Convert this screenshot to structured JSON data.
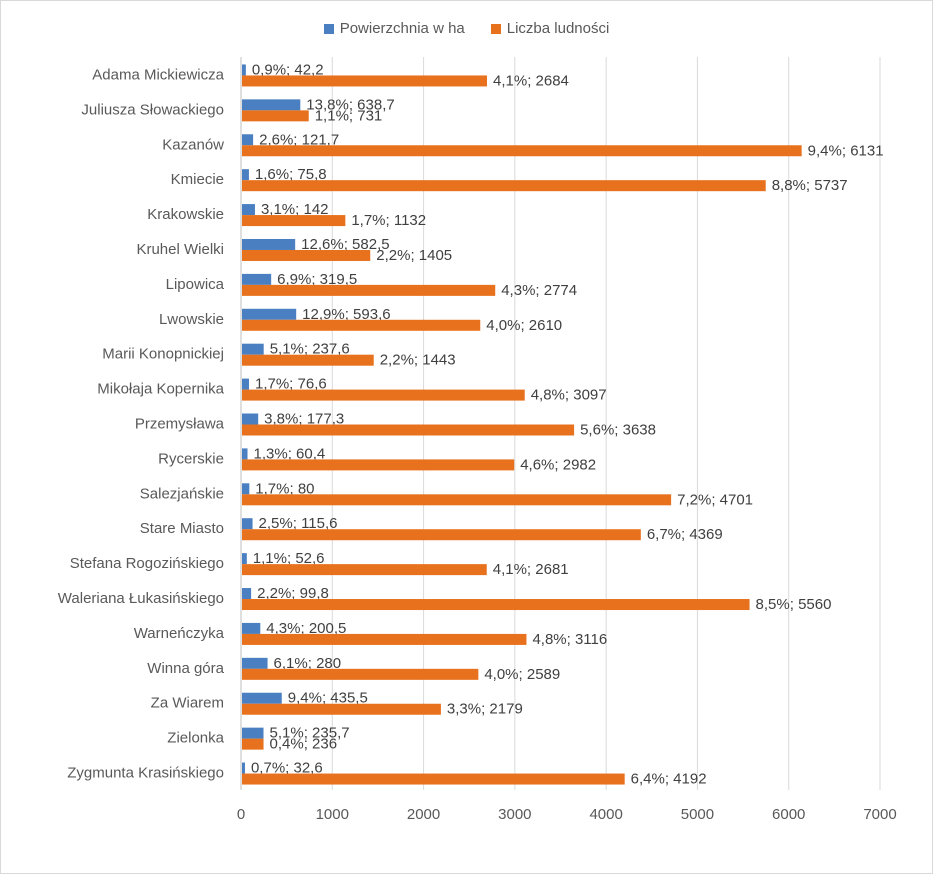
{
  "chart_data": {
    "type": "bar",
    "orientation": "horizontal",
    "title": "",
    "xlabel": "",
    "ylabel": "",
    "xlim": [
      0,
      7000
    ],
    "x_ticks": [
      "0",
      "1000",
      "2000",
      "3000",
      "4000",
      "5000",
      "6000",
      "7000"
    ],
    "grid": true,
    "legend_position": "top",
    "categories": [
      "Adama Mickiewicza",
      "Juliusza Słowackiego",
      "Kazanów",
      "Kmiecie",
      "Krakowskie",
      "Kruhel Wielki",
      "Lipowica",
      "Lwowskie",
      "Marii Konopnickiej",
      "Mikołaja Kopernika",
      "Przemysława",
      "Rycerskie",
      "Salezjańskie",
      "Stare Miasto",
      "Stefana Rogozińskiego",
      "Waleriana Łukasińskiego",
      "Warneńczyka",
      "Winna góra",
      "Za Wiarem",
      "Zielonka",
      "Zygmunta Krasińskiego"
    ],
    "series": [
      {
        "name": "Powierzchnia w ha",
        "color": "#4a7fc1",
        "values": [
          42.2,
          638.7,
          121.7,
          75.8,
          142,
          582.5,
          319.5,
          593.6,
          237.6,
          76.6,
          177.3,
          60.4,
          80,
          115.6,
          52.6,
          99.8,
          200.5,
          280,
          435.5,
          235.7,
          32.6
        ],
        "labels": [
          "0,9%; 42,2",
          "13,8%; 638,7",
          "2,6%; 121,7",
          "1,6%; 75,8",
          "3,1%; 142",
          "12,6%; 582,5",
          "6,9%; 319,5",
          "12,9%; 593,6",
          "5,1%; 237,6",
          "1,7%; 76,6",
          "3,8%; 177,3",
          "1,3%; 60,4",
          "1,7%; 80",
          "2,5%; 115,6",
          "1,1%; 52,6",
          "2,2%; 99,8",
          "4,3%; 200,5",
          "6,1%; 280",
          "9,4%; 435,5",
          "5,1%; 235,7",
          "0,7%; 32,6"
        ]
      },
      {
        "name": "Liczba ludności",
        "color": "#e8711d",
        "values": [
          2684,
          731,
          6131,
          5737,
          1132,
          1405,
          2774,
          2610,
          1443,
          3097,
          3638,
          2982,
          4701,
          4369,
          2681,
          5560,
          3116,
          2589,
          2179,
          236,
          4192
        ],
        "labels": [
          "4,1%; 2684",
          "1,1%; 731",
          "9,4%; 6131",
          "8,8%; 5737",
          "1,7%; 1132",
          "2,2%; 1405",
          "4,3%; 2774",
          "4,0%; 2610",
          "2,2%; 1443",
          "4,8%; 3097",
          "5,6%; 3638",
          "4,6%; 2982",
          "7,2%; 4701",
          "6,7%; 4369",
          "4,1%; 2681",
          "8,5%; 5560",
          "4,8%; 3116",
          "4,0%; 2589",
          "3,3%; 2179",
          "0,4%; 236",
          "6,4%; 4192"
        ]
      }
    ]
  }
}
